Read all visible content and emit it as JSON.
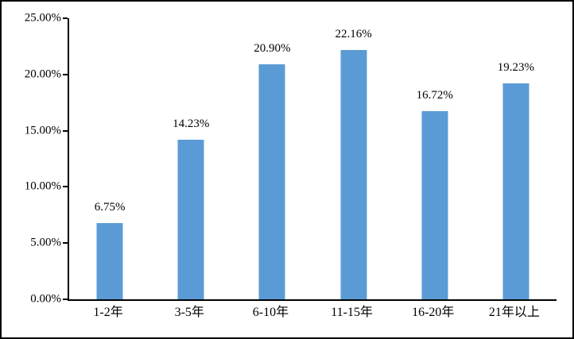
{
  "chart_data": {
    "type": "bar",
    "title": "",
    "xlabel": "",
    "ylabel": "",
    "categories": [
      "1-2年",
      "3-5年",
      "6-10年",
      "11-15年",
      "16-20年",
      "21年以上"
    ],
    "values": [
      6.75,
      14.23,
      20.9,
      22.16,
      16.72,
      19.23
    ],
    "data_labels": [
      "6.75%",
      "14.23%",
      "20.90%",
      "22.16%",
      "16.72%",
      "19.23%"
    ],
    "y_tick_labels": [
      "0.00%",
      "5.00%",
      "10.00%",
      "15.00%",
      "20.00%",
      "25.00%"
    ],
    "ylim": [
      0,
      25
    ],
    "grid": "off",
    "legend": "none",
    "colors": {
      "bar_fill": "#5B9BD5",
      "axis": "#000000",
      "text": "#000000",
      "background": "#ffffff",
      "outer_border": "#000000"
    }
  }
}
